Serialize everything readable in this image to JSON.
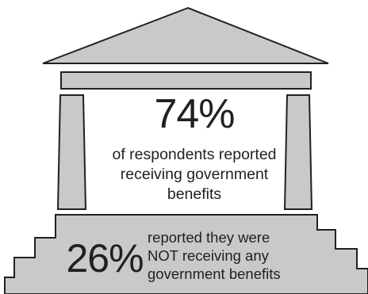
{
  "colors": {
    "fill": "#c9c9cb",
    "stroke": "#231f20",
    "text": "#231f20",
    "background": "#ffffff"
  },
  "received": {
    "value": 74,
    "percent_label": "74%",
    "description": [
      "of respondents reported",
      "receiving government",
      "benefits"
    ]
  },
  "not_received": {
    "value": 26,
    "percent_label": "26%",
    "description": [
      "reported they were",
      "NOT receiving any",
      "government benefits"
    ]
  }
}
